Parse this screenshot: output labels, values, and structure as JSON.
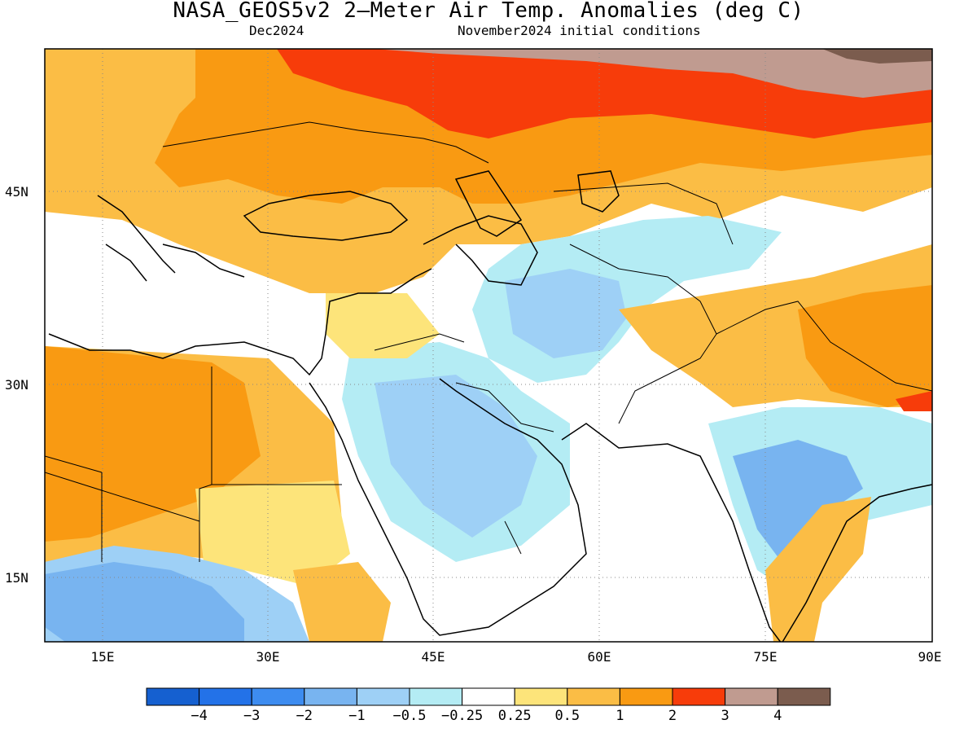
{
  "title": "NASA_GEOS5v2 2–Meter Air Temp. Anomalies (deg C)",
  "subtitle_left": "Dec2024",
  "subtitle_right": "November2024 initial conditions",
  "lat_labels": [
    "45N",
    "30N",
    "15N"
  ],
  "lon_labels": [
    "15E",
    "30E",
    "45E",
    "60E",
    "75E",
    "90E"
  ],
  "colorbar": {
    "colors": [
      "#1560d0",
      "#2372e8",
      "#3d8cf0",
      "#78b4f0",
      "#9ed0f6",
      "#b4ecf4",
      "#ffffff",
      "#fde47a",
      "#fbbd45",
      "#f99a12",
      "#f73c0a",
      "#c09b90",
      "#7b5c4e"
    ],
    "labels": [
      "−4",
      "−3",
      "−2",
      "−1",
      "−0.5",
      "−0.25",
      "0.25",
      "0.5",
      "1",
      "2",
      "3",
      "4"
    ]
  }
}
